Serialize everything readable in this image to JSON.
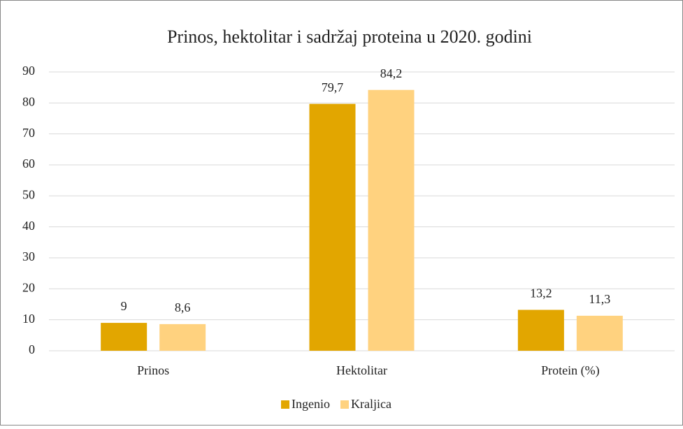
{
  "chart_data": {
    "type": "bar",
    "title": "Prinos, hektolitar i sadržaj proteina u 2020. godini",
    "categories": [
      "Prinos",
      "Hektolitar",
      "Protein (%)"
    ],
    "series": [
      {
        "name": "Ingenio",
        "color": "#e2a600",
        "values": [
          9,
          79.7,
          13.2
        ],
        "value_labels": [
          "9",
          "79,7",
          "13,2"
        ]
      },
      {
        "name": "Kraljica",
        "color": "#ffd27f",
        "values": [
          8.6,
          84.2,
          11.3
        ],
        "value_labels": [
          "8,6",
          "84,2",
          "11,3"
        ]
      }
    ],
    "ylim": [
      0,
      90
    ],
    "yticks": [
      0,
      10,
      20,
      30,
      40,
      50,
      60,
      70,
      80,
      90
    ],
    "grid": true,
    "legend": "bottom"
  }
}
